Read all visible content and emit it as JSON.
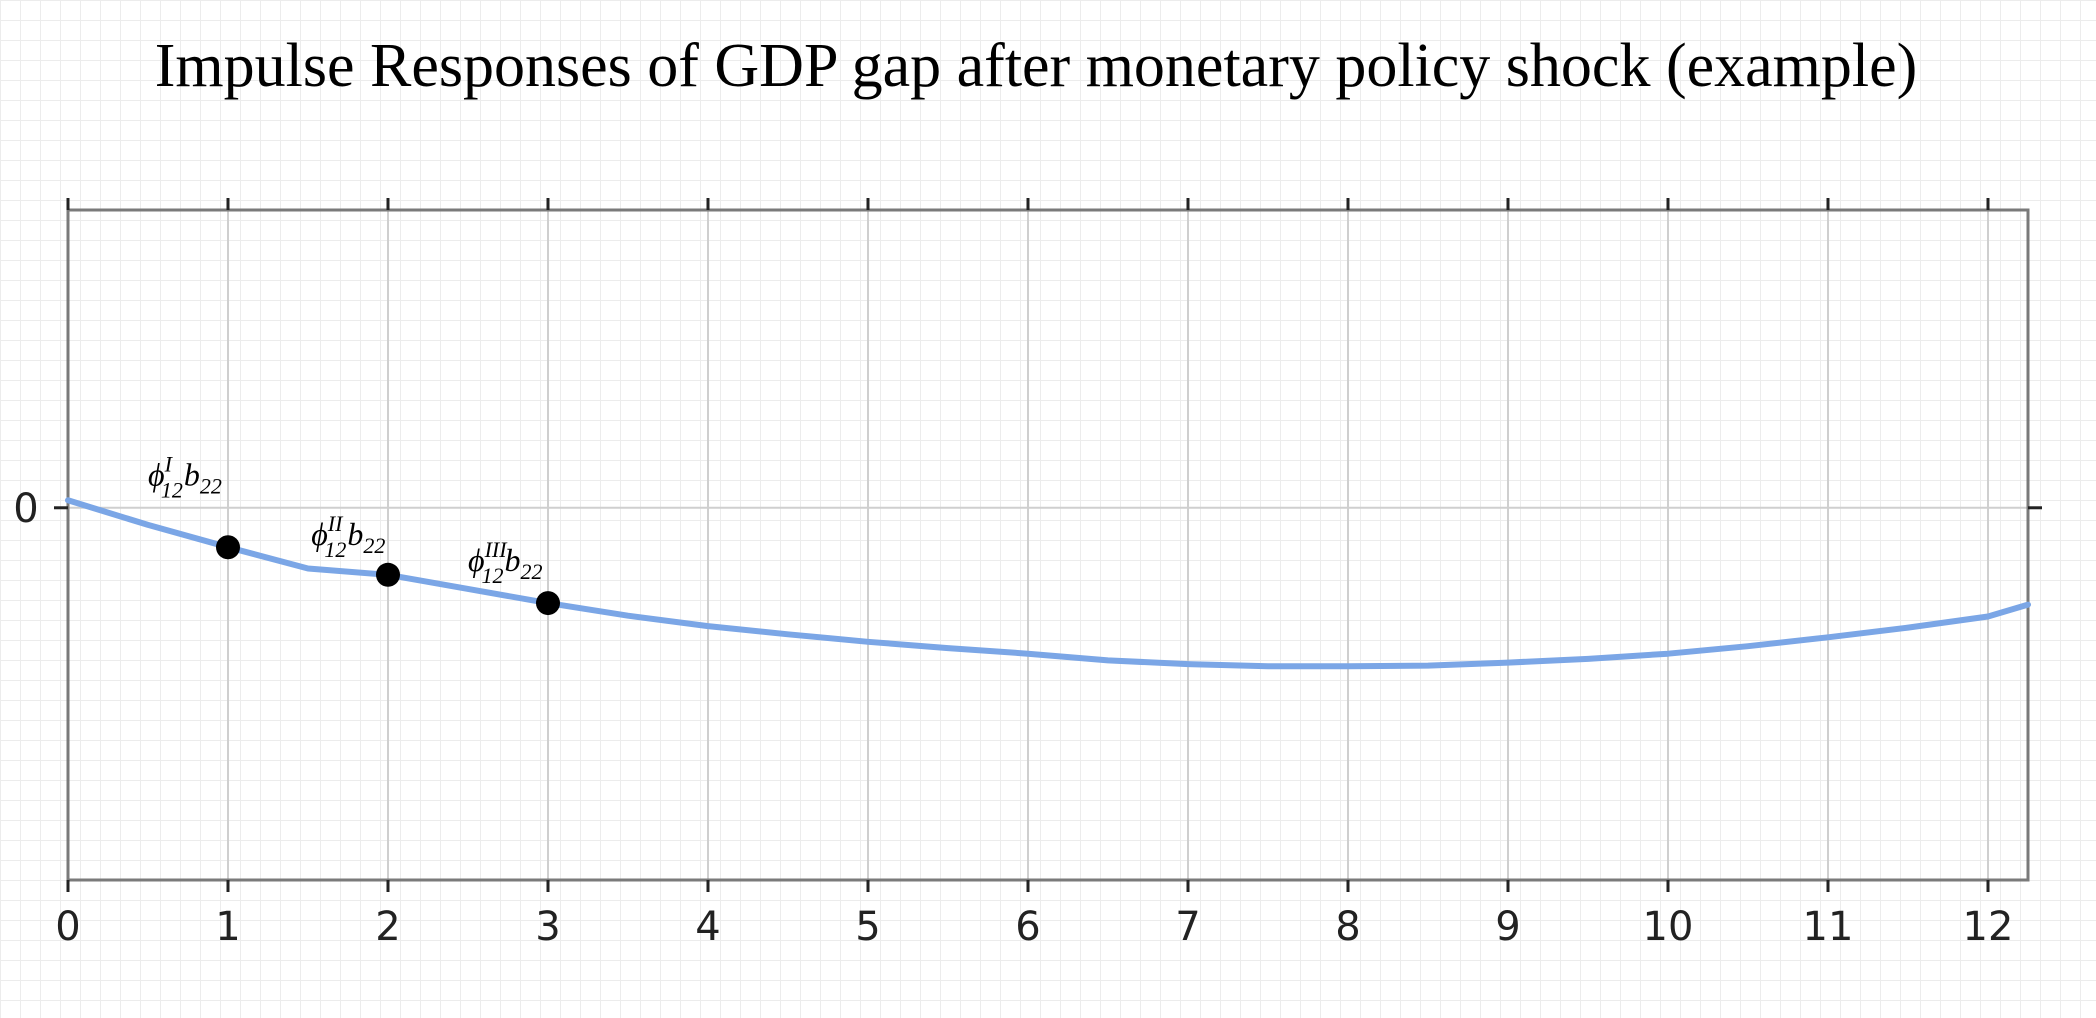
{
  "chart_data": {
    "type": "line",
    "title": "Impulse Responses of GDP gap after monetary policy shock (example)",
    "xlabel": "",
    "ylabel": "",
    "xlim": [
      0,
      12.25
    ],
    "ylim": [
      -1.0,
      0.8
    ],
    "x_ticks": [
      0,
      1,
      2,
      3,
      4,
      5,
      6,
      7,
      8,
      9,
      10,
      11,
      12
    ],
    "x_tick_labels": [
      "0",
      "1",
      "2",
      "3",
      "4",
      "5",
      "6",
      "7",
      "8",
      "9",
      "10",
      "11",
      "12"
    ],
    "y_ticks": [
      0
    ],
    "y_tick_labels": [
      "0"
    ],
    "grid": true,
    "line_color": "#7ba6e6",
    "marker_color": "#000000",
    "curve": {
      "x": [
        0,
        0.5,
        1,
        1.5,
        2,
        2.5,
        3,
        3.5,
        4,
        4.5,
        5,
        5.5,
        6,
        6.5,
        7,
        7.5,
        8,
        8.5,
        9,
        9.5,
        10,
        10.5,
        11,
        11.5,
        12,
        12.25
      ],
      "y": [
        0.02,
        -0.046,
        -0.106,
        -0.163,
        -0.18,
        -0.218,
        -0.256,
        -0.29,
        -0.318,
        -0.34,
        -0.36,
        -0.377,
        -0.392,
        -0.41,
        -0.42,
        -0.426,
        -0.426,
        -0.424,
        -0.416,
        -0.406,
        -0.392,
        -0.372,
        -0.348,
        -0.322,
        -0.292,
        -0.26
      ]
    },
    "points": [
      {
        "x": 1,
        "y": -0.106
      },
      {
        "x": 2,
        "y": -0.18
      },
      {
        "x": 3,
        "y": -0.256
      }
    ],
    "annotations": [
      {
        "x": 0.5,
        "y": 0.06,
        "base": "ϕ",
        "sup": "I",
        "sub": "12",
        "tail": "b",
        "tail_sub": "22"
      },
      {
        "x": 1.52,
        "y": -0.1,
        "base": "ϕ",
        "sup": "II",
        "sub": "12",
        "tail": "b",
        "tail_sub": "22"
      },
      {
        "x": 2.5,
        "y": -0.17,
        "base": "ϕ",
        "sup": "III",
        "sub": "12",
        "tail": "b",
        "tail_sub": "22"
      }
    ]
  }
}
